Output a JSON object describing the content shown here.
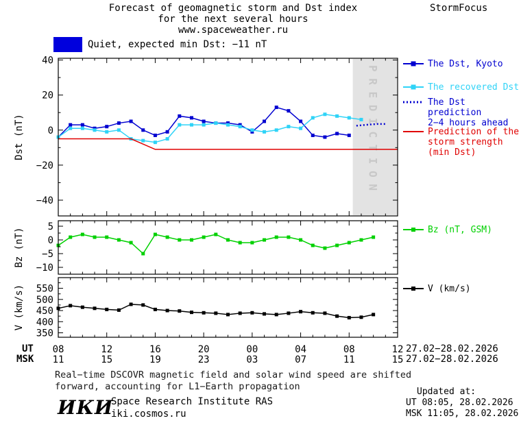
{
  "header": {
    "title_line1": "Forecast of geomagnetic storm and Dst index",
    "title_line2": "for the next several hours",
    "title_line3": "www.spaceweather.ru",
    "brand": "StormFocus"
  },
  "status_banner": {
    "label": "Quiet, expected min Dst: −11 nT",
    "color": "#0000dd"
  },
  "colors": {
    "band": "#e3e3e3",
    "band_text": "#c8c8c8",
    "dst_blue": "#0000d0",
    "recovered_cyan": "#2fd3f7",
    "storm_red": "#e00000",
    "bz_green": "#00d000",
    "v_black": "#000000"
  },
  "legend": {
    "dst_kyoto": {
      "label": "The Dst, Kyoto"
    },
    "recovered": {
      "label": "The recovered Dst"
    },
    "prediction": {
      "line1": "The Dst prediction",
      "line2": "2−4 hours ahead"
    },
    "storm": {
      "line1": "Prediction of the",
      "line2": "storm strength",
      "line3": "(min Dst)"
    },
    "bz": {
      "label": "Bz (nT, GSM)"
    },
    "v": {
      "label": "V (km/s)"
    }
  },
  "x_axis": {
    "hours": [
      8,
      12,
      16,
      20,
      24,
      28,
      32,
      36
    ],
    "minor_step": 1,
    "ut_row_label": "UT",
    "msk_row_label": "MSK",
    "ut_labels": [
      "08",
      "12",
      "16",
      "20",
      "00",
      "04",
      "08",
      "12"
    ],
    "msk_labels": [
      "11",
      "15",
      "19",
      "23",
      "03",
      "07",
      "11",
      "15"
    ],
    "date_range": "27.02−28.02.2026"
  },
  "chart_data": [
    {
      "id": "dst",
      "type": "line",
      "ylabel": "Dst (nT)",
      "ylim": [
        -49,
        41
      ],
      "yticks": [
        -40,
        -20,
        0,
        20,
        40
      ],
      "y_minor_step": 10,
      "xlim": [
        8,
        36
      ],
      "prediction_band": {
        "x_start": 32.3,
        "x_end": 36,
        "label": "P R E D I C T I O N"
      },
      "series": [
        {
          "name": "The Dst, Kyoto",
          "color": "#0000d0",
          "marker": true,
          "width": 1.5,
          "x": [
            8,
            9,
            10,
            11,
            12,
            13,
            14,
            15,
            16,
            17,
            18,
            19,
            20,
            21,
            22,
            23,
            24,
            25,
            26,
            27,
            28,
            29,
            30,
            31,
            32
          ],
          "y": [
            -4,
            3,
            3,
            1,
            2,
            4,
            5,
            0,
            -3,
            -1,
            8,
            7,
            5,
            4,
            4,
            3,
            -1,
            5,
            13,
            11,
            5,
            -3,
            -4,
            -2,
            -3
          ]
        },
        {
          "name": "The recovered Dst",
          "color": "#2fd3f7",
          "marker": true,
          "width": 1.5,
          "x": [
            8,
            9,
            10,
            11,
            12,
            13,
            14,
            15,
            16,
            17,
            18,
            19,
            20,
            21,
            22,
            23,
            24,
            25,
            26,
            27,
            28,
            29,
            30,
            31,
            32,
            33
          ],
          "y": [
            -4,
            1,
            1,
            0,
            -1,
            0,
            -5,
            -6,
            -7,
            -5,
            3,
            3,
            3,
            4,
            3,
            2,
            0,
            -1,
            0,
            2,
            1,
            7,
            9,
            8,
            7,
            6
          ]
        },
        {
          "name": "The Dst prediction 2−4 hours ahead",
          "color": "#0000d0",
          "dotted": true,
          "width": 2.5,
          "x": [
            32.6,
            33.4,
            34.3,
            35.1
          ],
          "y": [
            2.5,
            3,
            3.5,
            3.5
          ]
        },
        {
          "name": "Prediction of the storm strength (min Dst)",
          "color": "#e00000",
          "width": 1.5,
          "x": [
            8,
            14,
            16,
            36
          ],
          "y": [
            -5,
            -5,
            -11,
            -11
          ]
        }
      ]
    },
    {
      "id": "bz",
      "type": "line",
      "ylabel": "Bz (nT)",
      "ylim": [
        -12.5,
        7
      ],
      "yticks": [
        -10,
        -5,
        0,
        5
      ],
      "y_minor_step": 2.5,
      "xlim": [
        8,
        36
      ],
      "series": [
        {
          "name": "Bz (nT, GSM)",
          "color": "#00d000",
          "marker": true,
          "width": 1.5,
          "x": [
            8,
            9,
            10,
            11,
            12,
            13,
            14,
            15,
            16,
            17,
            18,
            19,
            20,
            21,
            22,
            23,
            24,
            25,
            26,
            27,
            28,
            29,
            30,
            31,
            32,
            33,
            34
          ],
          "y": [
            -2,
            1,
            2,
            1,
            1,
            0,
            -1,
            -5,
            2,
            1,
            0,
            0,
            1,
            2,
            0,
            -1,
            -1,
            0,
            1,
            1,
            0,
            -2,
            -3,
            -2,
            -1,
            0,
            1
          ]
        }
      ]
    },
    {
      "id": "v",
      "type": "line",
      "ylabel": "V (km/s)",
      "ylim": [
        330,
        598
      ],
      "yticks": [
        350,
        400,
        450,
        500,
        550
      ],
      "y_minor_step": 25,
      "xlim": [
        8,
        36
      ],
      "series": [
        {
          "name": "V (km/s)",
          "color": "#000000",
          "marker": true,
          "width": 1.5,
          "x": [
            8,
            9,
            10,
            11,
            12,
            13,
            14,
            15,
            16,
            17,
            18,
            19,
            20,
            21,
            22,
            23,
            24,
            25,
            26,
            27,
            28,
            29,
            30,
            31,
            32,
            33,
            34
          ],
          "y": [
            460,
            472,
            465,
            460,
            455,
            452,
            478,
            475,
            455,
            450,
            448,
            442,
            440,
            438,
            432,
            438,
            440,
            435,
            432,
            438,
            445,
            440,
            438,
            425,
            418,
            420,
            432
          ]
        }
      ]
    }
  ],
  "footer": {
    "line1": "Real−time DSCOVR magnetic field and solar wind speed are shifted",
    "line2": "forward, accounting for L1−Earth propagation"
  },
  "updated": {
    "title": "Updated at:",
    "ut": "UT  08:05, 28.02.2026",
    "msk": "MSK 11:05, 28.02.2026"
  },
  "institute": {
    "logo": "ИКИ",
    "name": "Space Research Institute RAS",
    "site": "iki.cosmos.ru"
  }
}
